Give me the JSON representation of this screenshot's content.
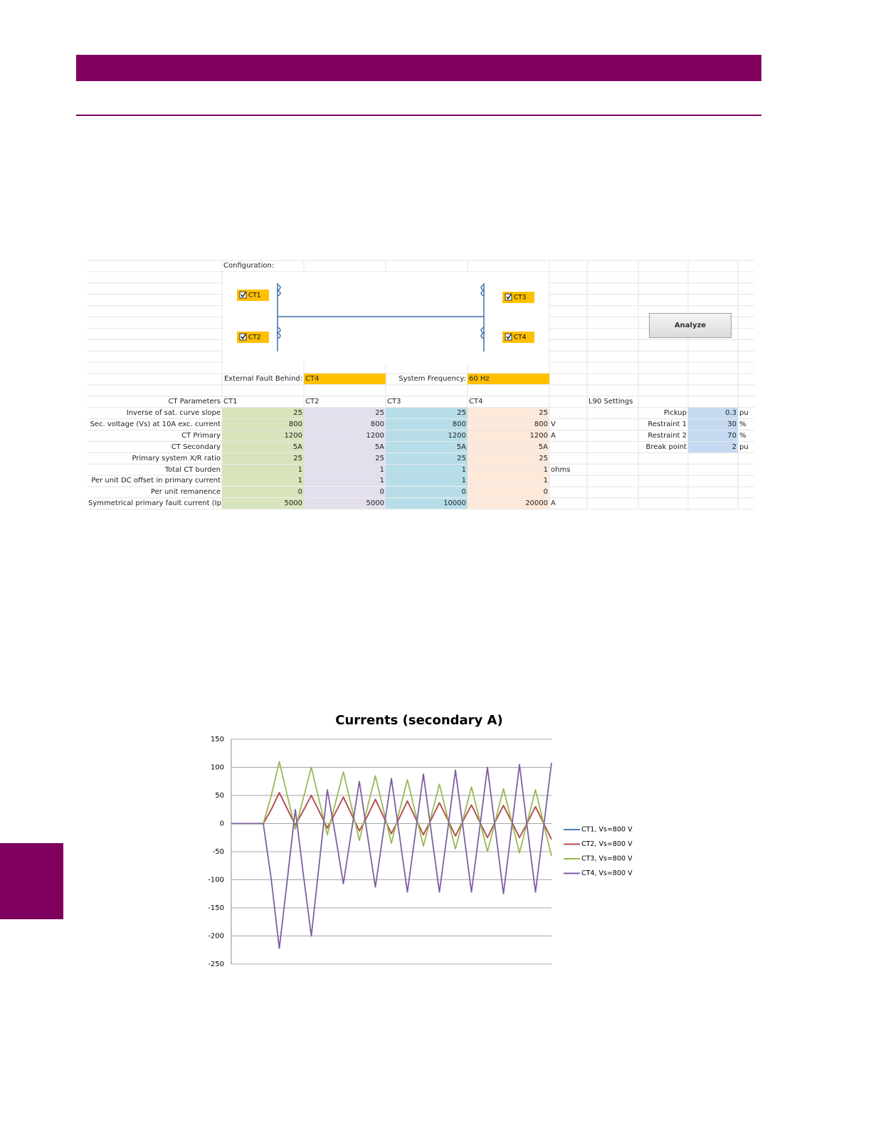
{
  "spreadsheet": {
    "config_label": "Configuration:",
    "ct_checkboxes": [
      "CT1",
      "CT2",
      "CT3",
      "CT4"
    ],
    "analyze_button": "Analyze",
    "fault_label": "External Fault Behind:",
    "fault_value": "CT4",
    "freq_label": "System Frequency:",
    "freq_value": "60 Hz",
    "params_header": "CT Parameters",
    "columns": [
      "CT1",
      "CT2",
      "CT3",
      "CT4"
    ],
    "rows": [
      {
        "label": "Inverse of sat. curve slope",
        "values": [
          25,
          25,
          25,
          25
        ]
      },
      {
        "label": "Sec. voltage (Vs) at 10A exc. current",
        "values": [
          800,
          800,
          800,
          800
        ],
        "unit": "V"
      },
      {
        "label": "CT Primary",
        "values": [
          1200,
          1200,
          1200,
          1200
        ],
        "unit": "A"
      },
      {
        "label": "CT Secondary",
        "values": [
          "5A",
          "5A",
          "5A",
          "5A"
        ]
      },
      {
        "label": "Primary system X/R ratio",
        "values": [
          25,
          25,
          25,
          25
        ]
      },
      {
        "label": "Total CT burden",
        "values": [
          1,
          1,
          1,
          1
        ],
        "unit": "ohms"
      },
      {
        "label": "Per unit DC offset in primary current",
        "values": [
          1,
          1,
          1,
          1
        ]
      },
      {
        "label": "Per unit remanence",
        "values": [
          0,
          0,
          0,
          0
        ]
      },
      {
        "label": "Symmetrical primary fault current (Ip)",
        "values": [
          5000,
          5000,
          10000,
          20000
        ],
        "unit": "A"
      }
    ],
    "settings_header": "L90 Settings",
    "settings": [
      {
        "label": "Pickup",
        "value": 0.3,
        "unit": "pu"
      },
      {
        "label": "Restraint 1",
        "value": 30,
        "unit": "%"
      },
      {
        "label": "Restraint 2",
        "value": 70,
        "unit": "%"
      },
      {
        "label": "Break point",
        "value": 2,
        "unit": "pu"
      }
    ]
  },
  "chart_data": {
    "type": "line",
    "title": "Currents (secondary A)",
    "categories": [
      null,
      null,
      null,
      null,
      null,
      null,
      null,
      null,
      null,
      null,
      null,
      null,
      null,
      null,
      null,
      null,
      null,
      null,
      null,
      null,
      null,
      null,
      null,
      null,
      null,
      null,
      null,
      null,
      null,
      null,
      null,
      null,
      null,
      null,
      null,
      null,
      null,
      null,
      null,
      null,
      null
    ],
    "ylim": [
      -250,
      150
    ],
    "yticks": [
      -250,
      -200,
      -150,
      -100,
      -50,
      0,
      50,
      100,
      150
    ],
    "grid": true,
    "legend": "right",
    "series": [
      {
        "name": "CT1, Vs=800 V",
        "color": "#4a7ebb",
        "values": [
          0,
          0,
          0,
          0,
          0,
          25,
          55,
          26,
          -3,
          23,
          50,
          21,
          -8,
          19,
          47,
          17,
          -13,
          13,
          43,
          13,
          -18,
          10,
          40,
          10,
          -20,
          8,
          37,
          8,
          -22,
          6,
          33,
          4,
          -25,
          4,
          32,
          4,
          -25,
          2,
          30,
          1,
          -28
        ]
      },
      {
        "name": "CT2, Vs=800 V",
        "color": "#be4b48",
        "values": [
          0,
          0,
          0,
          0,
          0,
          25,
          55,
          26,
          -3,
          23,
          50,
          21,
          -8,
          19,
          47,
          17,
          -13,
          13,
          43,
          13,
          -18,
          10,
          40,
          10,
          -20,
          8,
          37,
          8,
          -22,
          6,
          33,
          4,
          -25,
          4,
          32,
          4,
          -25,
          2,
          30,
          1,
          -28
        ]
      },
      {
        "name": "CT3, Vs=800 V",
        "color": "#98b954",
        "values": [
          0,
          0,
          0,
          0,
          0,
          50,
          110,
          50,
          -10,
          45,
          100,
          40,
          -20,
          36,
          92,
          31,
          -30,
          28,
          85,
          25,
          -35,
          22,
          78,
          19,
          -40,
          15,
          70,
          12,
          -45,
          10,
          65,
          8,
          -50,
          6,
          62,
          5,
          -52,
          4,
          60,
          1,
          -58
        ]
      },
      {
        "name": "CT4, Vs=800 V",
        "color": "#7d60a0",
        "values": [
          0,
          0,
          0,
          0,
          0,
          -100,
          -222,
          -100,
          25,
          -90,
          -200,
          -70,
          60,
          -20,
          -107,
          -15,
          75,
          -20,
          -113,
          -15,
          80,
          -20,
          -122,
          -17,
          88,
          -17,
          -122,
          -15,
          95,
          -12,
          -122,
          -12,
          100,
          -12,
          -125,
          -10,
          105,
          -10,
          -122,
          -8,
          108
        ]
      }
    ]
  }
}
